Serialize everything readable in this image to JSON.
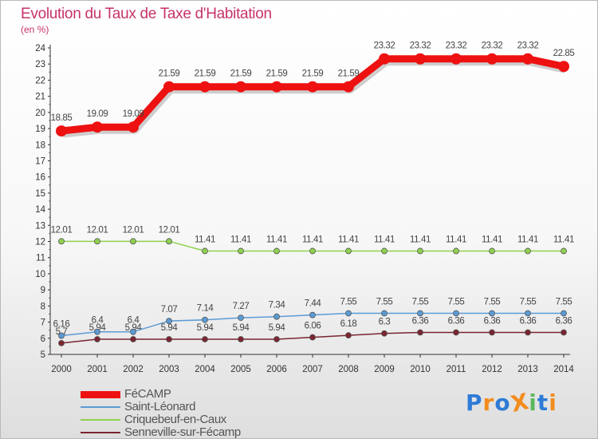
{
  "chart_data": {
    "type": "line",
    "title": "Evolution du Taux de Taxe d'Habitation",
    "subtitle": "(en %)",
    "xlabel": "",
    "ylabel": "(en %)",
    "ylim": [
      5,
      24
    ],
    "yticks": [
      5,
      6,
      7,
      8,
      9,
      10,
      11,
      12,
      13,
      14,
      15,
      16,
      17,
      18,
      19,
      20,
      21,
      22,
      23,
      24
    ],
    "categories": [
      "2000",
      "2001",
      "2002",
      "2003",
      "2004",
      "2005",
      "2006",
      "2007",
      "2008",
      "2009",
      "2010",
      "2011",
      "2012",
      "2013",
      "2014"
    ],
    "grid": false,
    "legend_position": "bottom-left",
    "series": [
      {
        "name": "FéCAMP",
        "color": "#ee1111",
        "labels": [
          "18.85",
          "19.09",
          "19.09",
          "21.59",
          "21.59",
          "21.59",
          "21.59",
          "21.59",
          "21.59",
          "23.32",
          "23.32",
          "23.32",
          "23.32",
          "23.32",
          "22.85"
        ],
        "values": [
          18.85,
          19.09,
          19.09,
          21.59,
          21.59,
          21.59,
          21.59,
          21.59,
          21.59,
          23.32,
          23.32,
          23.32,
          23.32,
          23.32,
          22.85
        ]
      },
      {
        "name": "Saint-Léonard",
        "color": "#5b9bd5",
        "labels": [
          "6.16",
          "6.4",
          "6.4",
          "7.07",
          "7.14",
          "7.27",
          "7.34",
          "7.44",
          "7.55",
          "7.55",
          "7.55",
          "7.55",
          "7.55",
          "7.55",
          "7.55"
        ],
        "values": [
          6.16,
          6.4,
          6.4,
          7.07,
          7.14,
          7.27,
          7.34,
          7.44,
          7.55,
          7.55,
          7.55,
          7.55,
          7.55,
          7.55,
          7.55
        ]
      },
      {
        "name": "Criquebeuf-en-Caux",
        "color": "#8fd14f",
        "labels": [
          "12.01",
          "12.01",
          "12.01",
          "12.01",
          "11.41",
          "11.41",
          "11.41",
          "11.41",
          "11.41",
          "11.41",
          "11.41",
          "11.41",
          "11.41",
          "11.41",
          "11.41"
        ],
        "values": [
          12.01,
          12.01,
          12.01,
          12.01,
          11.41,
          11.41,
          11.41,
          11.41,
          11.41,
          11.41,
          11.41,
          11.41,
          11.41,
          11.41,
          11.41
        ]
      },
      {
        "name": "Senneville-sur-Fécamp",
        "color": "#7a2530",
        "labels": [
          "5.7",
          "5.94",
          "5.94",
          "5.94",
          "5.94",
          "5.94",
          "5.94",
          "6.06",
          "6.18",
          "6.3",
          "6.36",
          "6.36",
          "6.36",
          "6.36",
          "6.36"
        ],
        "values": [
          5.7,
          5.94,
          5.94,
          5.94,
          5.94,
          5.94,
          5.94,
          6.06,
          6.18,
          6.3,
          6.36,
          6.36,
          6.36,
          6.36,
          6.36
        ]
      }
    ]
  },
  "logo": {
    "text": "ProXiti",
    "letters": [
      "P",
      "r",
      "o",
      "X",
      "i",
      "t",
      "i"
    ],
    "colors": [
      "#2e7bd6",
      "#f28c1e",
      "#2e7bd6",
      "#f28c1e",
      "#5cb85c",
      "#2e7bd6",
      "#f28c1e"
    ]
  }
}
